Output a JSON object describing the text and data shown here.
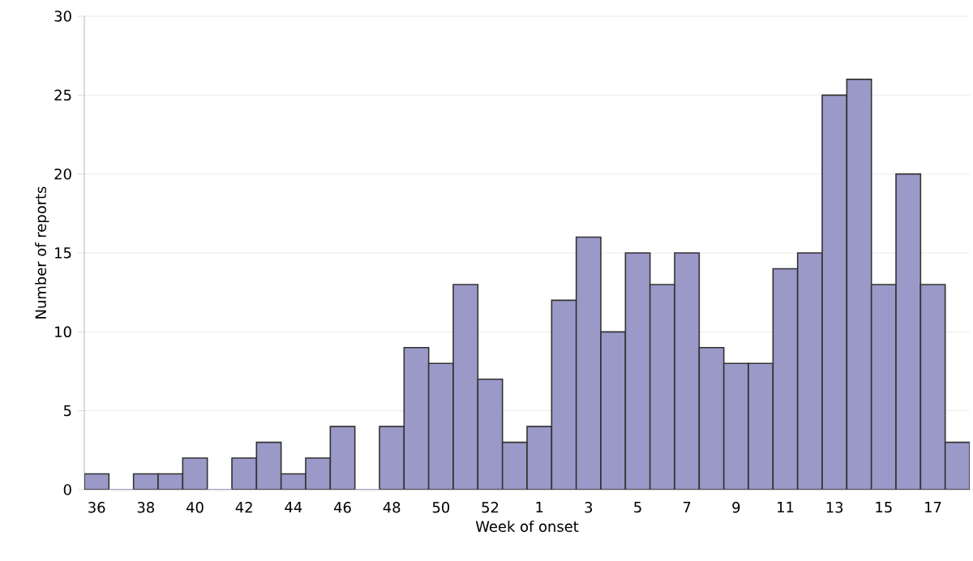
{
  "chart_data": {
    "type": "bar",
    "xlabel": "Week of onset",
    "ylabel": "Number of reports",
    "categories": [
      "36",
      null,
      "38",
      null,
      "40",
      null,
      "42",
      null,
      "44",
      null,
      "46",
      null,
      "48",
      null,
      "50",
      null,
      "52",
      null,
      "1",
      null,
      "3",
      null,
      "5",
      null,
      "7",
      null,
      "9",
      null,
      "11",
      null,
      "13",
      null,
      "15",
      null,
      "17",
      null
    ],
    "values": [
      1,
      0,
      1,
      1,
      2,
      0,
      2,
      3,
      1,
      2,
      4,
      0,
      4,
      9,
      8,
      13,
      7,
      3,
      4,
      12,
      16,
      10,
      15,
      13,
      15,
      9,
      8,
      8,
      14,
      15,
      25,
      26,
      13,
      20,
      13,
      3
    ],
    "color": "#9b99c8",
    "ylim": [
      0,
      30
    ],
    "yticks": [
      0,
      5,
      10,
      15,
      20,
      25,
      30
    ],
    "grid": "y"
  }
}
